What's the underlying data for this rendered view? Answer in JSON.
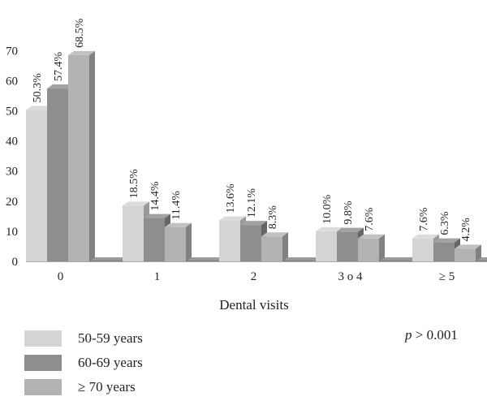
{
  "chart_data": {
    "type": "bar",
    "subtype": "grouped-3d",
    "categories": [
      "0",
      "1",
      "2",
      "3 o 4",
      "≥ 5"
    ],
    "series": [
      {
        "name": "50-59 years",
        "color": "#d4d4d4",
        "values": [
          50.3,
          18.5,
          13.6,
          10.0,
          7.6
        ],
        "labels": [
          "50.3%",
          "18.5%",
          "13.6%",
          "10.0%",
          "7.6%"
        ]
      },
      {
        "name": "60-69 years",
        "color": "#8e8e8e",
        "values": [
          57.4,
          14.4,
          12.1,
          9.8,
          6.3
        ],
        "labels": [
          "57.4%",
          "14.4%",
          "12.1%",
          "9.8%",
          "6.3%"
        ]
      },
      {
        "name": "≥ 70 years",
        "color": "#b3b3b3",
        "values": [
          68.5,
          11.4,
          8.3,
          7.6,
          4.2
        ],
        "labels": [
          "68.5%",
          "11.4%",
          "8.3%",
          "7.6%",
          "4.2%"
        ]
      }
    ],
    "xlabel": "Dental visits",
    "ylabel": "",
    "ylim": [
      0,
      70
    ],
    "yticks": [
      0,
      10,
      20,
      30,
      40,
      50,
      60,
      70
    ],
    "grid": false,
    "legend_position": "bottom-left",
    "annotation": {
      "prefix": "p",
      "text": " > 0.001"
    }
  }
}
